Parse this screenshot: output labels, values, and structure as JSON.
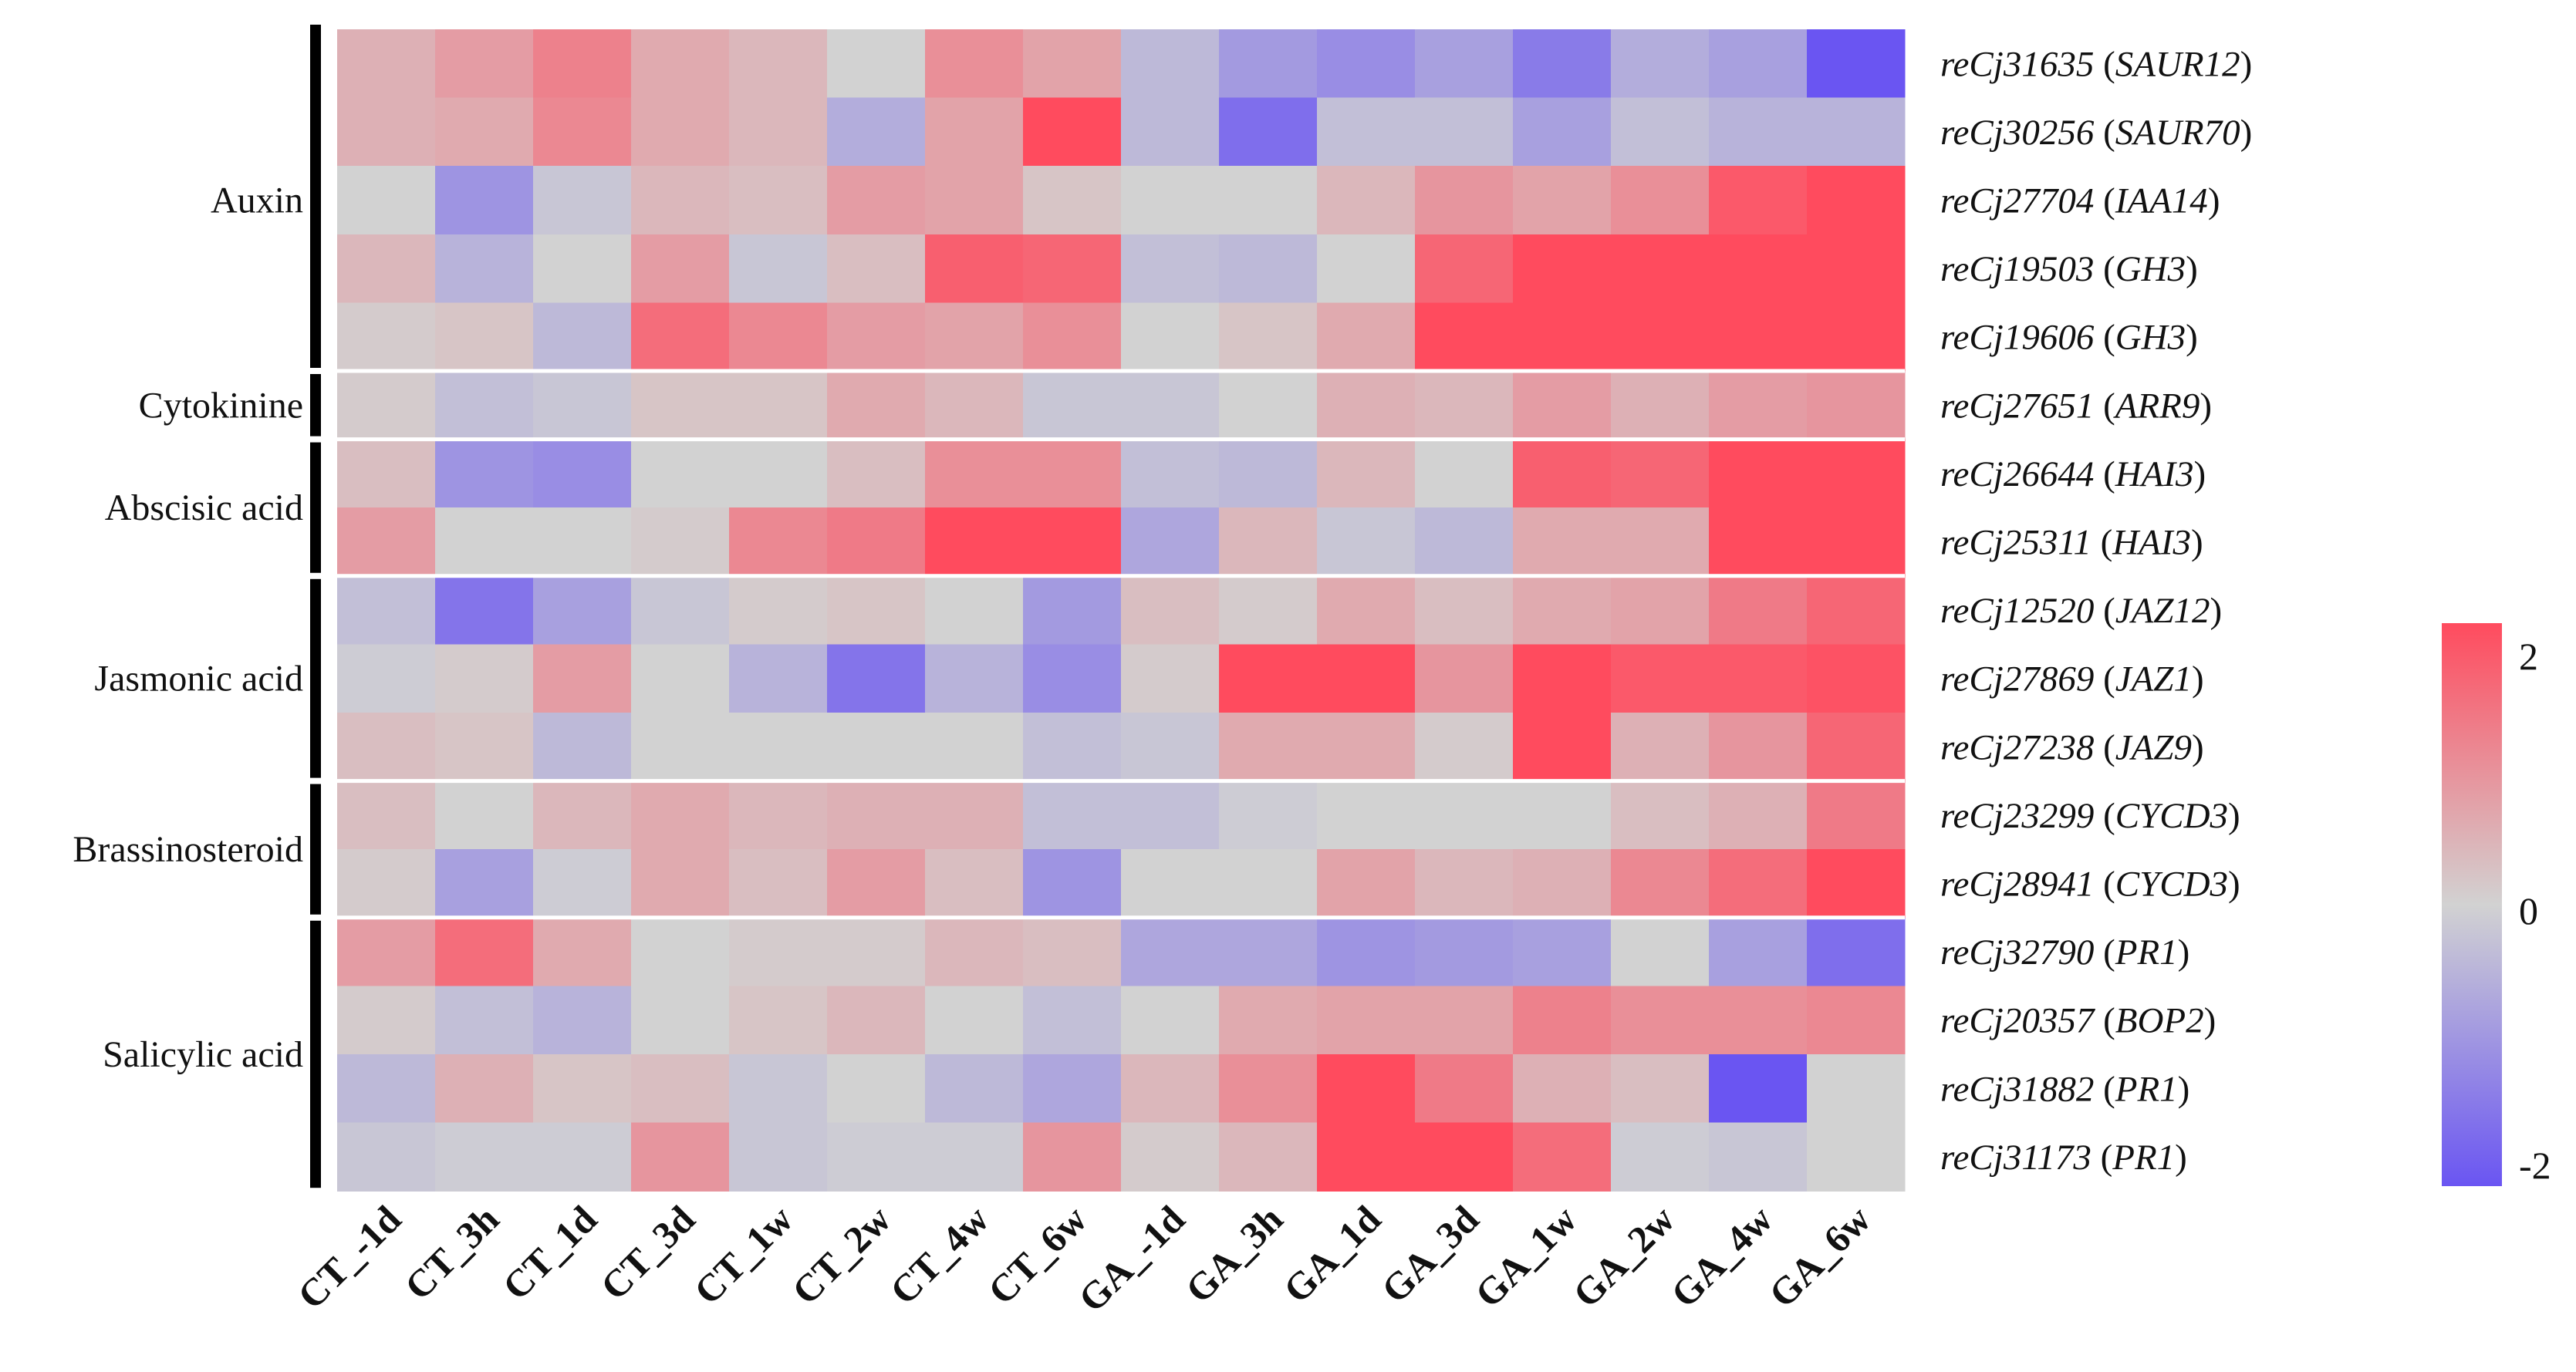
{
  "chart_data": {
    "type": "heatmap",
    "columns": [
      "CT_-1d",
      "CT_3h",
      "CT_1d",
      "CT_3d",
      "CT_1w",
      "CT_2w",
      "CT_4w",
      "CT_6w",
      "GA_-1d",
      "GA_3h",
      "GA_1d",
      "GA_3d",
      "GA_1w",
      "GA_2w",
      "GA_4w",
      "GA_6w"
    ],
    "rows": [
      {
        "id": "reCj31635",
        "gene": "SAUR12",
        "group": "Auxin",
        "values": [
          0.5,
          0.8,
          1.2,
          0.6,
          0.4,
          0.0,
          1.0,
          0.7,
          -0.4,
          -0.9,
          -1.1,
          -0.8,
          -1.4,
          -0.6,
          -0.8,
          -2.0
        ]
      },
      {
        "id": "reCj30256",
        "gene": "SAUR70",
        "group": "Auxin",
        "values": [
          0.5,
          0.6,
          1.1,
          0.6,
          0.4,
          -0.6,
          0.7,
          2.0,
          -0.4,
          -1.6,
          -0.3,
          -0.3,
          -0.8,
          -0.3,
          -0.5,
          -0.5
        ]
      },
      {
        "id": "reCj27704",
        "gene": "IAA14",
        "group": "Auxin",
        "values": [
          0.0,
          -1.0,
          -0.2,
          0.4,
          0.3,
          0.8,
          0.7,
          0.2,
          0.0,
          0.0,
          0.4,
          0.9,
          0.7,
          1.0,
          1.8,
          2.0
        ]
      },
      {
        "id": "reCj19503",
        "gene": "GH3",
        "group": "Auxin",
        "values": [
          0.4,
          -0.5,
          0.0,
          0.8,
          -0.2,
          0.3,
          1.7,
          1.6,
          -0.3,
          -0.4,
          0.0,
          1.6,
          2.2,
          2.2,
          2.2,
          2.2
        ]
      },
      {
        "id": "reCj19606",
        "gene": "GH3",
        "group": "Auxin",
        "values": [
          0.1,
          0.2,
          -0.4,
          1.5,
          1.1,
          0.8,
          0.7,
          1.0,
          0.0,
          0.2,
          0.6,
          2.2,
          2.2,
          2.2,
          2.2,
          2.2
        ]
      },
      {
        "id": "reCj27651",
        "gene": "ARR9",
        "group": "Cytokinine",
        "values": [
          0.1,
          -0.3,
          -0.2,
          0.2,
          0.2,
          0.6,
          0.4,
          -0.2,
          -0.2,
          0.0,
          0.5,
          0.4,
          0.8,
          0.5,
          0.8,
          0.9
        ]
      },
      {
        "id": "reCj26644",
        "gene": "HAI3",
        "group": "Abscisic acid",
        "values": [
          0.3,
          -1.0,
          -1.1,
          0.0,
          0.0,
          0.3,
          1.0,
          1.0,
          -0.3,
          -0.4,
          0.4,
          0.0,
          1.7,
          1.6,
          2.2,
          2.2
        ]
      },
      {
        "id": "reCj25311",
        "gene": "HAI3",
        "group": "Abscisic acid",
        "values": [
          0.8,
          0.0,
          0.0,
          0.1,
          1.1,
          1.3,
          2.0,
          2.0,
          -0.7,
          0.4,
          -0.2,
          -0.4,
          0.6,
          0.6,
          2.2,
          2.2
        ]
      },
      {
        "id": "reCj12520",
        "gene": "JAZ12",
        "group": "Jasmonic acid",
        "values": [
          -0.3,
          -1.5,
          -0.8,
          -0.2,
          0.1,
          0.2,
          0.0,
          -0.9,
          0.3,
          0.1,
          0.6,
          0.3,
          0.6,
          0.7,
          1.3,
          1.6
        ]
      },
      {
        "id": "reCj27869",
        "gene": "JAZ1",
        "group": "Jasmonic acid",
        "values": [
          -0.1,
          0.1,
          0.8,
          0.0,
          -0.5,
          -1.5,
          -0.5,
          -1.1,
          0.1,
          2.0,
          2.0,
          0.9,
          2.1,
          1.8,
          1.8,
          1.9
        ]
      },
      {
        "id": "reCj27238",
        "gene": "JAZ9",
        "group": "Jasmonic acid",
        "values": [
          0.3,
          0.2,
          -0.4,
          0.0,
          0.0,
          0.0,
          0.0,
          -0.3,
          -0.2,
          0.6,
          0.6,
          0.1,
          2.1,
          0.5,
          0.9,
          1.6
        ]
      },
      {
        "id": "reCj23299",
        "gene": "CYCD3",
        "group": "Brassinosteroid",
        "values": [
          0.3,
          0.0,
          0.4,
          0.6,
          0.4,
          0.5,
          0.5,
          -0.3,
          -0.3,
          -0.1,
          0.0,
          0.0,
          0.0,
          0.3,
          0.5,
          1.3
        ]
      },
      {
        "id": "reCj28941",
        "gene": "CYCD3",
        "group": "Brassinosteroid",
        "values": [
          0.1,
          -0.8,
          -0.1,
          0.6,
          0.3,
          0.8,
          0.3,
          -1.0,
          0.0,
          0.0,
          0.7,
          0.4,
          0.5,
          1.1,
          1.5,
          2.0
        ]
      },
      {
        "id": "reCj32790",
        "gene": "PR1",
        "group": "Salicylic acid",
        "values": [
          0.8,
          1.5,
          0.6,
          0.0,
          0.1,
          0.1,
          0.4,
          0.3,
          -0.7,
          -0.7,
          -1.0,
          -0.9,
          -0.8,
          0.0,
          -0.8,
          -1.6
        ]
      },
      {
        "id": "reCj20357",
        "gene": "BOP2",
        "group": "Salicylic acid",
        "values": [
          0.1,
          -0.3,
          -0.5,
          0.0,
          0.2,
          0.4,
          0.0,
          -0.3,
          0.0,
          0.6,
          0.7,
          0.7,
          1.2,
          1.0,
          1.0,
          1.1
        ]
      },
      {
        "id": "reCj31882",
        "gene": "PR1",
        "group": "Salicylic acid",
        "values": [
          -0.4,
          0.5,
          0.2,
          0.3,
          -0.2,
          0.0,
          -0.4,
          -0.7,
          0.4,
          1.0,
          2.2,
          1.3,
          0.5,
          0.3,
          -2.0,
          0.0
        ]
      },
      {
        "id": "reCj31173",
        "gene": "PR1",
        "group": "Salicylic acid",
        "values": [
          -0.2,
          -0.1,
          -0.1,
          0.9,
          -0.2,
          -0.1,
          -0.1,
          0.9,
          0.1,
          0.4,
          2.2,
          2.2,
          1.5,
          -0.1,
          -0.2,
          0.0
        ]
      }
    ],
    "groups": [
      "Auxin",
      "Cytokinine",
      "Abscisic acid",
      "Jasmonic acid",
      "Brassinosteroid",
      "Salicylic acid"
    ],
    "colorbar": {
      "min": -2,
      "max": 2,
      "mid": 0,
      "ticks": [
        "2",
        "0",
        "-2"
      ],
      "colors": {
        "low": "#6a55f2",
        "mid": "#d2d2d2",
        "high": "#ff4b5e"
      }
    },
    "legend_position": "right"
  }
}
